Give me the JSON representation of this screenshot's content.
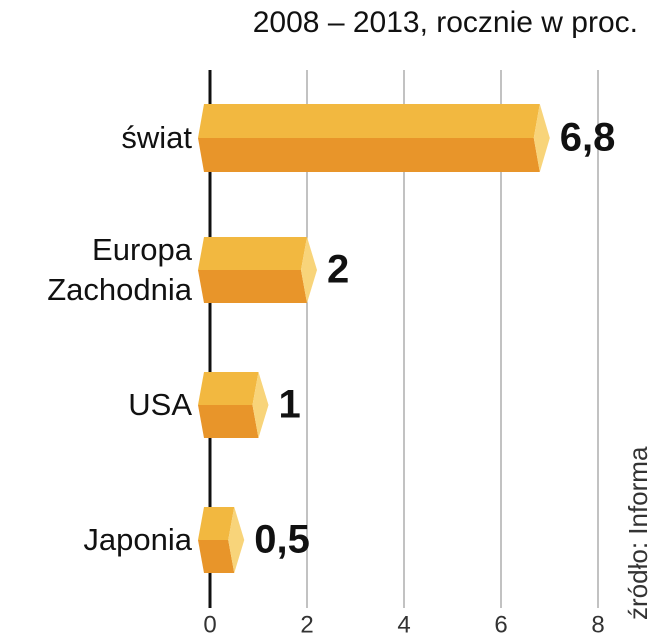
{
  "chart_data": {
    "type": "bar",
    "orientation": "horizontal",
    "subtitle": "2008 – 2013, rocznie w proc.",
    "source": "źródło: Informa",
    "categories": [
      "świat",
      "Europa Zachodnia",
      "USA",
      "Japonia"
    ],
    "values": [
      6.8,
      2,
      1,
      0.5
    ],
    "value_labels": [
      "6,8",
      "2",
      "1",
      "0,5"
    ],
    "color": "#f2b840",
    "xlim": [
      0,
      8
    ],
    "xticks": [
      0,
      2,
      4,
      6,
      8
    ],
    "grid": true
  }
}
